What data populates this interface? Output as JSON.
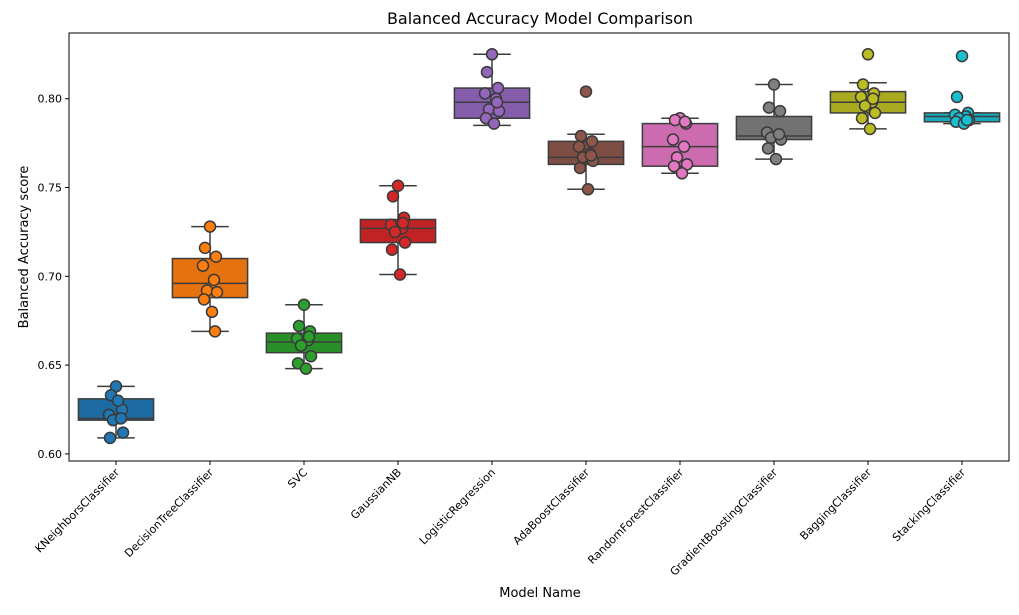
{
  "chart_data": {
    "type": "box",
    "title": "Balanced Accuracy Model Comparison",
    "xlabel": "Model Name",
    "ylabel": "Balanced Accuracy score",
    "ylim": [
      0.596,
      0.837
    ],
    "yticks": [
      "0.60",
      "0.65",
      "0.70",
      "0.75",
      "0.80"
    ],
    "grid": false,
    "categories": [
      "KNeighborsClassifier",
      "DecisionTreeClassifier",
      "SVC",
      "GaussianNB",
      "LogisticRegression",
      "AdaBoostClassifier",
      "RandomForestClassifier",
      "GradientBoostingClassifier",
      "BaggingClassifier",
      "StackingClassifier"
    ],
    "series": [
      {
        "category": "KNeighborsClassifier",
        "color": "#1f77b4",
        "box": {
          "whislo": 0.609,
          "q1": 0.619,
          "med": 0.62,
          "q3": 0.631,
          "whishi": 0.638
        },
        "points": [
          0.638,
          0.633,
          0.625,
          0.622,
          0.62,
          0.619,
          0.612,
          0.609,
          0.63,
          0.62
        ]
      },
      {
        "category": "DecisionTreeClassifier",
        "color": "#ff7f0e",
        "box": {
          "whislo": 0.669,
          "q1": 0.688,
          "med": 0.696,
          "q3": 0.71,
          "whishi": 0.728
        },
        "points": [
          0.728,
          0.716,
          0.711,
          0.706,
          0.698,
          0.692,
          0.691,
          0.687,
          0.68,
          0.669
        ]
      },
      {
        "category": "SVC",
        "color": "#2ca02c",
        "box": {
          "whislo": 0.648,
          "q1": 0.657,
          "med": 0.663,
          "q3": 0.668,
          "whishi": 0.684
        },
        "points": [
          0.684,
          0.672,
          0.669,
          0.665,
          0.664,
          0.661,
          0.655,
          0.651,
          0.648,
          0.666
        ]
      },
      {
        "category": "GaussianNB",
        "color": "#d62728",
        "box": {
          "whislo": 0.701,
          "q1": 0.719,
          "med": 0.727,
          "q3": 0.732,
          "whishi": 0.751
        },
        "points": [
          0.751,
          0.745,
          0.733,
          0.729,
          0.727,
          0.725,
          0.719,
          0.715,
          0.701,
          0.73
        ]
      },
      {
        "category": "LogisticRegression",
        "color": "#9467bd",
        "box": {
          "whislo": 0.785,
          "q1": 0.789,
          "med": 0.798,
          "q3": 0.806,
          "whishi": 0.825
        },
        "points": [
          0.825,
          0.815,
          0.806,
          0.803,
          0.8,
          0.794,
          0.793,
          0.789,
          0.786,
          0.798
        ]
      },
      {
        "category": "AdaBoostClassifier",
        "color": "#8c564b",
        "box": {
          "whislo": 0.749,
          "q1": 0.763,
          "med": 0.767,
          "q3": 0.776,
          "whishi": 0.78
        },
        "points": [
          0.804,
          0.779,
          0.776,
          0.773,
          0.769,
          0.767,
          0.765,
          0.761,
          0.749,
          0.768
        ]
      },
      {
        "category": "RandomForestClassifier",
        "color": "#e377c2",
        "box": {
          "whislo": 0.758,
          "q1": 0.762,
          "med": 0.773,
          "q3": 0.786,
          "whishi": 0.789
        },
        "points": [
          0.789,
          0.788,
          0.786,
          0.777,
          0.773,
          0.767,
          0.763,
          0.762,
          0.758,
          0.787
        ]
      },
      {
        "category": "GradientBoostingClassifier",
        "color": "#7f7f7f",
        "box": {
          "whislo": 0.766,
          "q1": 0.777,
          "med": 0.779,
          "q3": 0.79,
          "whishi": 0.808
        },
        "points": [
          0.808,
          0.795,
          0.793,
          0.781,
          0.779,
          0.778,
          0.777,
          0.772,
          0.766,
          0.78
        ]
      },
      {
        "category": "BaggingClassifier",
        "color": "#bcbd22",
        "box": {
          "whislo": 0.783,
          "q1": 0.792,
          "med": 0.798,
          "q3": 0.804,
          "whishi": 0.809
        },
        "points": [
          0.825,
          0.808,
          0.803,
          0.801,
          0.798,
          0.796,
          0.792,
          0.789,
          0.783,
          0.8
        ]
      },
      {
        "category": "StackingClassifier",
        "color": "#17becf",
        "box": {
          "whislo": 0.786,
          "q1": 0.787,
          "med": 0.79,
          "q3": 0.792,
          "whishi": 0.792
        },
        "points": [
          0.824,
          0.801,
          0.792,
          0.791,
          0.79,
          0.789,
          0.788,
          0.787,
          0.786,
          0.788
        ]
      }
    ]
  }
}
